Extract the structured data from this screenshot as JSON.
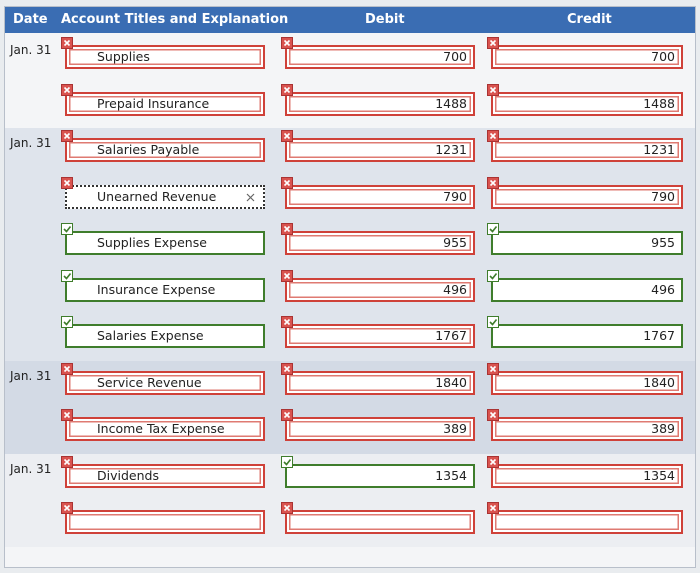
{
  "header": {
    "date": "Date",
    "account": "Account Titles and Explanation",
    "debit": "Debit",
    "credit": "Credit"
  },
  "entries": [
    {
      "date": "Jan. 31",
      "lines": [
        {
          "account": {
            "text": "Supplies",
            "status": "incorrect"
          },
          "debit": {
            "text": 700,
            "status": "incorrect"
          },
          "credit": {
            "text": 700,
            "status": "incorrect"
          }
        },
        {
          "account": {
            "text": "Prepaid Insurance",
            "status": "incorrect"
          },
          "debit": {
            "text": 1488,
            "status": "incorrect"
          },
          "credit": {
            "text": 1488,
            "status": "incorrect"
          }
        }
      ]
    },
    {
      "date": "Jan. 31",
      "lines": [
        {
          "account": {
            "text": "Salaries Payable",
            "status": "incorrect"
          },
          "debit": {
            "text": 1231,
            "status": "incorrect"
          },
          "credit": {
            "text": 1231,
            "status": "incorrect"
          }
        },
        {
          "account": {
            "text": "Unearned Revenue",
            "status": "incorrect",
            "focused": true
          },
          "debit": {
            "text": 790,
            "status": "incorrect"
          },
          "credit": {
            "text": 790,
            "status": "incorrect"
          }
        },
        {
          "account": {
            "text": "Supplies Expense",
            "status": "correct"
          },
          "debit": {
            "text": 955,
            "status": "incorrect"
          },
          "credit": {
            "text": 955,
            "status": "correct"
          }
        },
        {
          "account": {
            "text": "Insurance Expense",
            "status": "correct"
          },
          "debit": {
            "text": 496,
            "status": "incorrect"
          },
          "credit": {
            "text": 496,
            "status": "correct"
          }
        },
        {
          "account": {
            "text": "Salaries Expense",
            "status": "correct"
          },
          "debit": {
            "text": 1767,
            "status": "incorrect"
          },
          "credit": {
            "text": 1767,
            "status": "correct"
          }
        }
      ]
    },
    {
      "date": "Jan. 31",
      "lines": [
        {
          "account": {
            "text": "Service Revenue",
            "status": "incorrect"
          },
          "debit": {
            "text": 1840,
            "status": "incorrect"
          },
          "credit": {
            "text": 1840,
            "status": "incorrect"
          }
        },
        {
          "account": {
            "text": "Income Tax Expense",
            "status": "incorrect"
          },
          "debit": {
            "text": 389,
            "status": "incorrect"
          },
          "credit": {
            "text": 389,
            "status": "incorrect"
          }
        }
      ]
    },
    {
      "date": "Jan. 31",
      "lines": [
        {
          "account": {
            "text": "Dividends",
            "status": "incorrect"
          },
          "debit": {
            "text": 1354,
            "status": "correct"
          },
          "credit": {
            "text": 1354,
            "status": "incorrect"
          }
        },
        {
          "account": {
            "status": "incorrect"
          },
          "debit": {
            "status": "incorrect"
          },
          "credit": {
            "status": "incorrect"
          }
        }
      ]
    }
  ]
}
